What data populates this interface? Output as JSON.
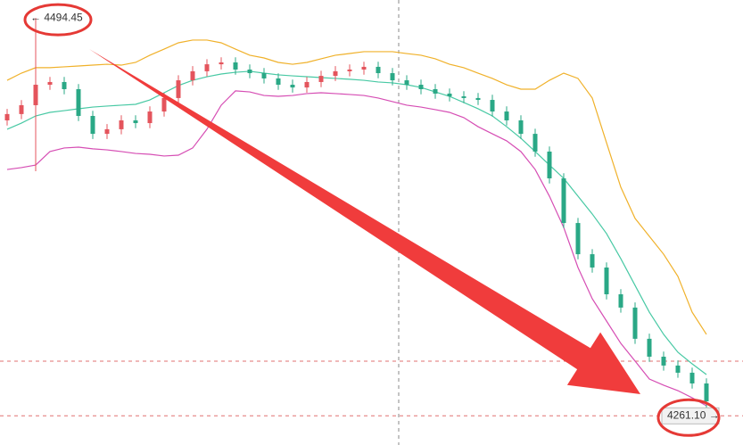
{
  "chart_data": {
    "type": "candlestick",
    "categories": [
      null,
      null,
      null,
      null,
      null,
      null,
      null,
      null,
      null,
      null,
      null,
      null,
      null,
      null,
      null,
      null,
      null,
      null,
      null,
      null,
      null,
      null,
      null,
      null,
      null,
      null,
      null,
      null,
      null,
      null,
      null,
      null,
      null,
      null,
      null,
      null,
      null,
      null,
      null,
      null,
      null,
      null,
      null,
      null,
      null,
      null,
      null,
      null,
      null,
      null
    ],
    "open": [
      4434.4,
      4438.1,
      4443.3,
      4455.3,
      4456.9,
      4452.7,
      4437.0,
      4426.5,
      4429.2,
      4434.4,
      4432.8,
      4439.6,
      4447.5,
      4457.9,
      4463.2,
      4467.3,
      4468.4,
      4464.2,
      4462.1,
      4459.0,
      4455.3,
      4453.7,
      4456.9,
      4460.5,
      4463.2,
      4464.2,
      4465.8,
      4462.1,
      4457.9,
      4455.3,
      4452.7,
      4450.1,
      4448.5,
      4447.5,
      4446.4,
      4439.6,
      4434.4,
      4426.5,
      4416.1,
      4400.4,
      4374.2,
      4355.9,
      4348.1,
      4332.4,
      4324.6,
      4306.3,
      4295.8,
      4290.6,
      4286.4,
      4280.1
    ],
    "high": [
      4441.1,
      4446.3,
      4494.45,
      4459.9,
      4459.9,
      4455.7,
      4440.0,
      4432.2,
      4437.4,
      4437.4,
      4442.6,
      4450.5,
      4460.9,
      4466.2,
      4470.3,
      4471.4,
      4471.4,
      4467.2,
      4465.1,
      4462.0,
      4458.3,
      4459.9,
      4463.5,
      4466.2,
      4467.2,
      4468.8,
      4468.8,
      4465.1,
      4460.9,
      4458.3,
      4455.7,
      4453.1,
      4451.5,
      4450.5,
      4449.4,
      4442.6,
      4437.4,
      4429.5,
      4419.1,
      4403.4,
      4377.2,
      4358.9,
      4351.1,
      4335.4,
      4327.6,
      4309.3,
      4298.8,
      4293.6,
      4289.4,
      4283.1
    ],
    "low": [
      4431.4,
      4435.1,
      4404.6,
      4452.3,
      4449.7,
      4434.0,
      4423.5,
      4423.5,
      4426.2,
      4429.8,
      4429.8,
      4436.6,
      4444.5,
      4454.9,
      4460.2,
      4464.3,
      4461.2,
      4459.1,
      4456.0,
      4452.3,
      4450.7,
      4450.7,
      4453.9,
      4457.5,
      4460.2,
      4461.2,
      4459.1,
      4454.9,
      4452.3,
      4449.7,
      4447.1,
      4445.5,
      4444.5,
      4443.4,
      4436.6,
      4431.4,
      4423.5,
      4413.1,
      4397.4,
      4371.2,
      4352.9,
      4345.1,
      4329.4,
      4321.6,
      4303.3,
      4292.8,
      4287.6,
      4283.4,
      4277.1,
      4261.1
    ],
    "close": [
      4438.1,
      4443.3,
      4455.3,
      4456.9,
      4452.7,
      4437.0,
      4426.5,
      4429.2,
      4434.4,
      4432.8,
      4439.6,
      4447.5,
      4457.9,
      4463.2,
      4467.3,
      4468.4,
      4464.2,
      4462.1,
      4459.0,
      4455.3,
      4453.7,
      4456.9,
      4460.5,
      4463.2,
      4464.2,
      4465.8,
      4462.1,
      4457.9,
      4455.3,
      4452.7,
      4450.1,
      4448.5,
      4447.5,
      4446.4,
      4439.6,
      4434.4,
      4426.5,
      4416.1,
      4400.4,
      4374.2,
      4355.9,
      4348.1,
      4332.4,
      4324.6,
      4306.3,
      4295.8,
      4290.6,
      4286.4,
      4280.1,
      4269.6
    ],
    "up_color": "#e4545c",
    "down_color": "#2aa886",
    "bands": [
      {
        "color": "#f0b12a",
        "values": [
          4457.9,
          4462.1,
          4465.3,
          4465.3,
          4465.8,
          4466.3,
          4466.8,
          4467.3,
          4466.8,
          4468.4,
          4472.6,
          4476.2,
          4479.9,
          4481.5,
          4481.5,
          4479.9,
          4476.2,
          4472.6,
          4471.0,
          4468.4,
          4467.3,
          4468.4,
          4470.5,
          4472.6,
          4473.6,
          4474.7,
          4474.7,
          4474.7,
          4473.6,
          4472.6,
          4470.5,
          4467.3,
          4465.3,
          4462.1,
          4459.0,
          4455.3,
          4452.7,
          4452.7,
          4457.9,
          4462.1,
          4459.0,
          4447.5,
          4421.3,
          4395.2,
          4376.9,
          4366.4,
          4355.9,
          4342.9,
          4321.9,
          4308.9
        ]
      },
      {
        "color": "#48c9a4",
        "values": [
          4429.2,
          4432.8,
          4437.0,
          4439.1,
          4440.1,
          4441.2,
          4442.2,
          4442.8,
          4443.3,
          4443.8,
          4446.4,
          4450.6,
          4454.8,
          4457.9,
          4460.0,
          4461.6,
          4462.6,
          4463.2,
          4462.1,
          4461.1,
          4460.5,
          4460.0,
          4459.5,
          4459.0,
          4458.5,
          4457.9,
          4456.9,
          4456.4,
          4455.3,
          4453.7,
          4451.1,
          4448.5,
          4444.9,
          4441.2,
          4437.0,
          4430.7,
          4423.9,
          4416.1,
          4408.2,
          4400.4,
          4389.9,
          4379.5,
          4368.0,
          4353.3,
          4337.6,
          4321.9,
          4308.9,
          4298.4,
          4291.6,
          4285.3
        ]
      },
      {
        "color": "#d64eb4",
        "values": [
          4405.6,
          4406.7,
          4408.2,
          4416.1,
          4418.2,
          4418.7,
          4417.7,
          4417.1,
          4416.1,
          4415.0,
          4414.5,
          4413.5,
          4414.0,
          4418.2,
          4429.2,
          4443.3,
          4451.7,
          4451.1,
          4449.0,
          4448.5,
          4449.0,
          4450.1,
          4450.6,
          4450.1,
          4449.6,
          4449.0,
          4447.5,
          4445.4,
          4443.3,
          4442.2,
          4440.7,
          4439.1,
          4436.0,
          4430.7,
          4426.5,
          4422.4,
          4416.1,
          4405.6,
          4389.9,
          4371.6,
          4348.1,
          4329.8,
          4316.7,
          4303.6,
          4293.2,
          4282.7,
          4279.1,
          4275.9,
          4271.7,
          4267.0
        ]
      }
    ],
    "ylim": [
      4244,
      4505
    ],
    "annotations": [
      {
        "label": "← 4494.45",
        "value": 4494.45
      },
      {
        "label": "4261.10 →",
        "value": 4261.1
      }
    ]
  }
}
